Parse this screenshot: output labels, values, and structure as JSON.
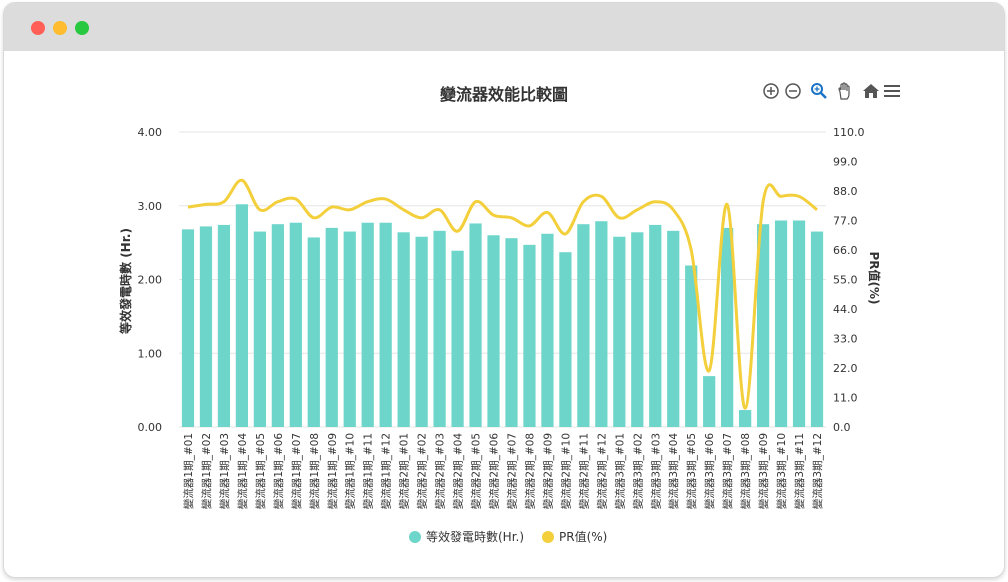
{
  "window": {
    "colors": {
      "close": "#ff5f57",
      "minimize": "#febc2e",
      "maximize": "#28c840"
    }
  },
  "toolbar": {
    "icons": [
      "zoom-in-icon",
      "zoom-out-icon",
      "zoom-select-icon",
      "pan-hand-icon",
      "home-icon",
      "menu-icon"
    ]
  },
  "chart_data": {
    "type": "bar",
    "title": "變流器效能比較圖",
    "categories": [
      "變流器1期_#01",
      "變流器1期_#02",
      "變流器1期_#03",
      "變流器1期_#04",
      "變流器1期_#05",
      "變流器1期_#06",
      "變流器1期_#07",
      "變流器1期_#08",
      "變流器1期_#09",
      "變流器1期_#10",
      "變流器1期_#11",
      "變流器1期_#12",
      "變流器2期_#01",
      "變流器2期_#02",
      "變流器2期_#03",
      "變流器2期_#04",
      "變流器2期_#05",
      "變流器2期_#06",
      "變流器2期_#07",
      "變流器2期_#08",
      "變流器2期_#09",
      "變流器2期_#10",
      "變流器2期_#11",
      "變流器2期_#12",
      "變流器3期_#01",
      "變流器3期_#02",
      "變流器3期_#03",
      "變流器3期_#04",
      "變流器3期_#05",
      "變流器3期_#06",
      "變流器3期_#07",
      "變流器3期_#08",
      "變流器3期_#09",
      "變流器3期_#10",
      "變流器3期_#11",
      "變流器3期_#12"
    ],
    "series": [
      {
        "name": "等效發電時數(Hr.)",
        "type": "bar",
        "axis": "left",
        "color": "#6dd5c9",
        "values": [
          2.68,
          2.72,
          2.74,
          3.02,
          2.65,
          2.75,
          2.77,
          2.57,
          2.7,
          2.65,
          2.77,
          2.77,
          2.64,
          2.58,
          2.66,
          2.39,
          2.76,
          2.6,
          2.56,
          2.47,
          2.62,
          2.37,
          2.75,
          2.79,
          2.58,
          2.64,
          2.74,
          2.66,
          2.19,
          0.69,
          2.7,
          0.23,
          2.75,
          2.8,
          2.8,
          2.65
        ]
      },
      {
        "name": "PR值(%)",
        "type": "line",
        "axis": "right",
        "color": "#f2cf3b",
        "values": [
          82,
          83,
          84,
          92,
          81,
          84,
          85,
          78,
          82,
          81,
          84,
          85,
          81,
          78,
          81,
          73,
          84,
          79,
          78,
          75,
          80,
          72,
          84,
          86,
          78,
          81,
          84,
          81,
          66,
          21,
          83,
          7,
          84,
          86,
          86,
          81
        ]
      }
    ],
    "left_axis": {
      "label": "等效發電時數 (Hr.)",
      "range": [
        0,
        4
      ],
      "ticks": [
        "0.00",
        "1.00",
        "2.00",
        "3.00",
        "4.00"
      ]
    },
    "right_axis": {
      "label": "PR值(%)",
      "range": [
        0,
        110
      ],
      "ticks": [
        "0.0",
        "11.0",
        "22.0",
        "33.0",
        "44.0",
        "55.0",
        "66.0",
        "77.0",
        "88.0",
        "99.0",
        "110.0"
      ]
    },
    "grid": true,
    "legend_position": "bottom-center",
    "legend": [
      "等效發電時數(Hr.)",
      "PR值(%)"
    ]
  }
}
